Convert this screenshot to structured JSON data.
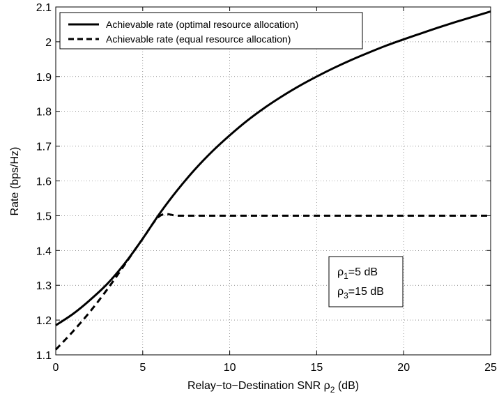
{
  "chart_data": {
    "type": "line",
    "xlabel": "Relay−to−Destination SNR ρ₂ (dB)",
    "xlabel_parts": {
      "prefix": "Relay−to−Destination SNR ρ",
      "sub": "2",
      "suffix": " (dB)"
    },
    "ylabel": "Rate (bps/Hz)",
    "xlim": [
      0,
      25
    ],
    "ylim": [
      1.1,
      2.1
    ],
    "x_ticks": [
      0,
      5,
      10,
      15,
      20,
      25
    ],
    "y_ticks": [
      1.1,
      1.2,
      1.3,
      1.4,
      1.5,
      1.6,
      1.7,
      1.8,
      1.9,
      2.0,
      2.1
    ],
    "x_tick_labels": [
      "0",
      "5",
      "10",
      "15",
      "20",
      "25"
    ],
    "y_tick_labels": [
      "1.1",
      "1.2",
      "1.3",
      "1.4",
      "1.5",
      "1.6",
      "1.7",
      "1.8",
      "1.9",
      "2",
      "2.1"
    ],
    "grid": true,
    "legend_position": "top-left",
    "series": [
      {
        "name": "Achievable rate (optimal resource allocation)",
        "style": "solid",
        "color": "#000000",
        "x": [
          0,
          1,
          2,
          3,
          4,
          5,
          6,
          7,
          8,
          9,
          10,
          11,
          12,
          13,
          14,
          15,
          16,
          17,
          18,
          19,
          20,
          21,
          22,
          23,
          24,
          25
        ],
        "y": [
          1.185,
          1.218,
          1.259,
          1.306,
          1.365,
          1.434,
          1.508,
          1.574,
          1.633,
          1.685,
          1.731,
          1.773,
          1.81,
          1.843,
          1.873,
          1.9,
          1.925,
          1.948,
          1.969,
          1.989,
          2.007,
          2.024,
          2.041,
          2.057,
          2.072,
          2.087
        ]
      },
      {
        "name": "Achievable rate (equal resource allocation)",
        "style": "dashed",
        "color": "#000000",
        "x": [
          0,
          1,
          2,
          3,
          4,
          5,
          6,
          7,
          8,
          9,
          10,
          15,
          20,
          25
        ],
        "y": [
          1.115,
          1.168,
          1.226,
          1.291,
          1.362,
          1.434,
          1.5,
          1.5,
          1.5,
          1.5,
          1.5,
          1.5,
          1.5,
          1.5
        ]
      }
    ],
    "annotation": [
      {
        "symbol": "ρ",
        "sub": "1",
        "text": "=5 dB"
      },
      {
        "symbol": "ρ",
        "sub": "3",
        "text": "=15 dB"
      }
    ]
  }
}
